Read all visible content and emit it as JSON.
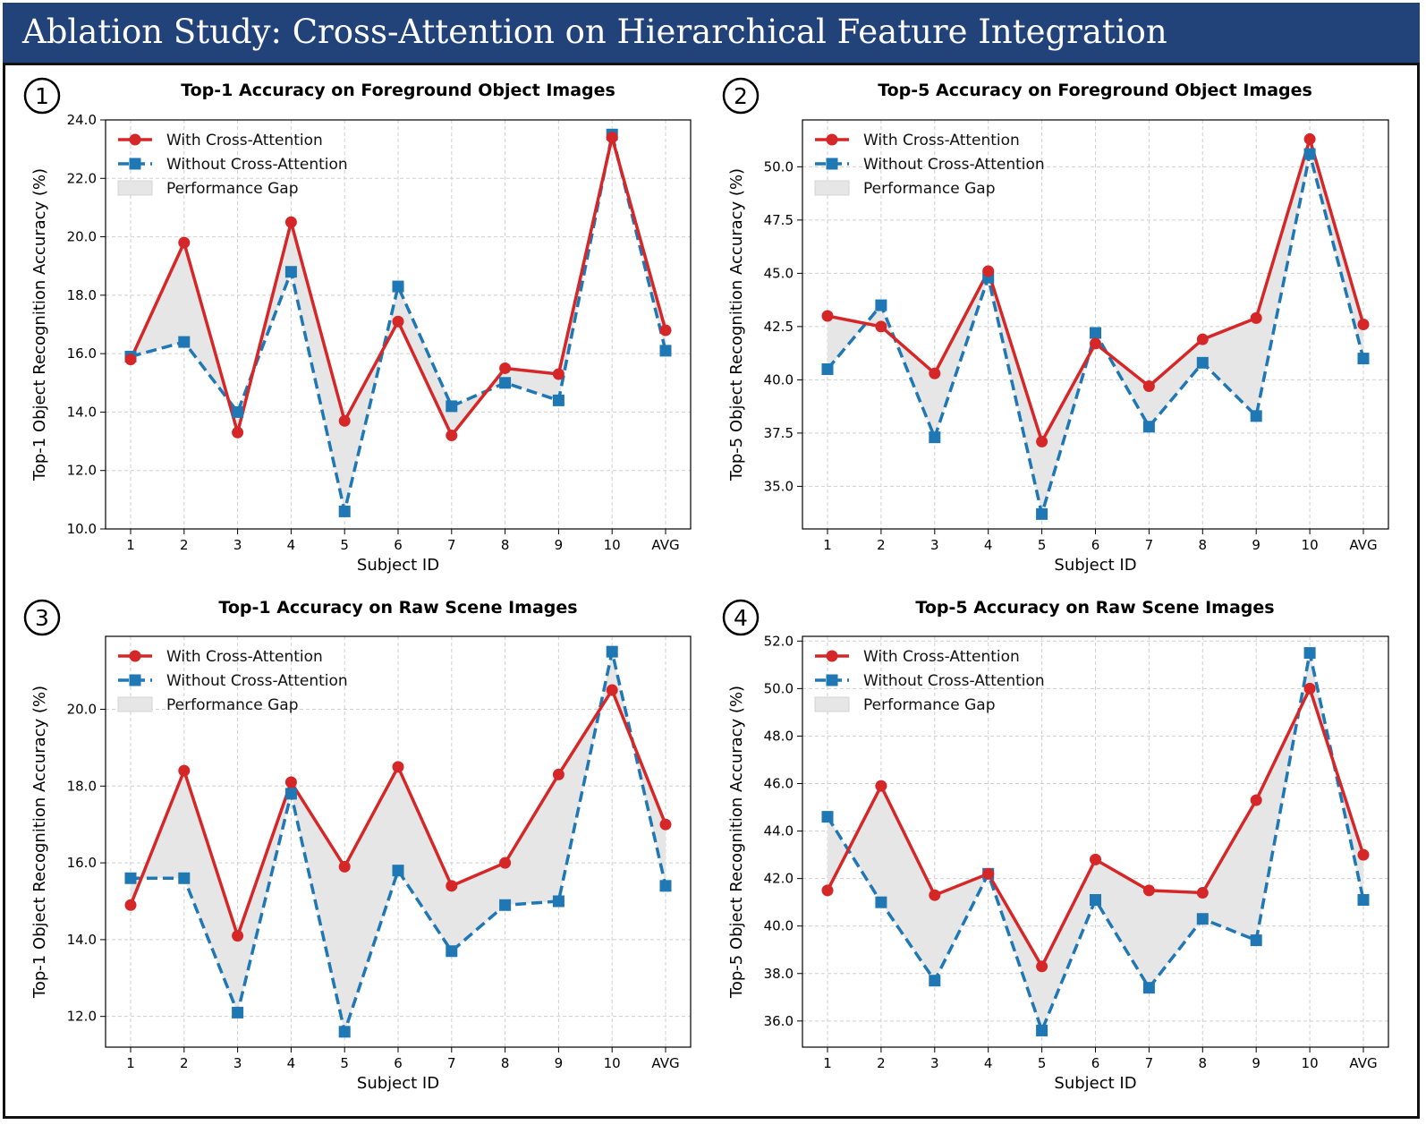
{
  "figure_title": "Ablation Study: Cross-Attention on Hierarchical Feature Integration",
  "colors": {
    "banner": "#22427a",
    "with": "#d62728",
    "without": "#1f77b4",
    "gap": "#e6e6e6"
  },
  "legend": {
    "with_label": "With Cross-Attention",
    "without_label": "Without Cross-Attention",
    "gap_label": "Performance Gap"
  },
  "chart_data": [
    {
      "type": "line",
      "badge": "1",
      "title": "Top-1 Accuracy on Foreground Object Images",
      "xlabel": "Subject ID",
      "ylabel": "Top-1 Object Recognition Accuracy (%)",
      "categories": [
        "1",
        "2",
        "3",
        "4",
        "5",
        "6",
        "7",
        "8",
        "9",
        "10",
        "AVG"
      ],
      "ylim": [
        10.0,
        24.0
      ],
      "yticks": [
        10.0,
        12.0,
        14.0,
        16.0,
        18.0,
        20.0,
        22.0,
        24.0
      ],
      "yticks_text": [
        "10.0",
        "12.0",
        "14.0",
        "16.0",
        "18.0",
        "20.0",
        "22.0",
        "24.0"
      ],
      "grid": true,
      "legend_position": "top-left",
      "series": [
        {
          "name": "With Cross-Attention",
          "values": [
            15.8,
            19.8,
            13.3,
            20.5,
            13.7,
            17.1,
            13.2,
            15.5,
            15.3,
            23.4,
            16.8
          ]
        },
        {
          "name": "Without Cross-Attention",
          "values": [
            15.9,
            16.4,
            14.0,
            18.8,
            10.6,
            18.3,
            14.2,
            15.0,
            14.4,
            23.5,
            16.1
          ]
        }
      ]
    },
    {
      "type": "line",
      "badge": "2",
      "title": "Top-5 Accuracy on Foreground Object Images",
      "xlabel": "Subject ID",
      "ylabel": "Top-5 Object Recognition Accuracy (%)",
      "categories": [
        "1",
        "2",
        "3",
        "4",
        "5",
        "6",
        "7",
        "8",
        "9",
        "10",
        "AVG"
      ],
      "ylim": [
        33.0,
        52.2
      ],
      "yticks": [
        35.0,
        37.5,
        40.0,
        42.5,
        45.0,
        47.5,
        50.0
      ],
      "yticks_text": [
        "35.0",
        "37.5",
        "40.0",
        "42.5",
        "45.0",
        "47.5",
        "50.0"
      ],
      "grid": true,
      "legend_position": "top-left",
      "series": [
        {
          "name": "With Cross-Attention",
          "values": [
            43.0,
            42.5,
            40.3,
            45.1,
            37.1,
            41.7,
            39.7,
            41.9,
            42.9,
            51.3,
            42.6
          ]
        },
        {
          "name": "Without Cross-Attention",
          "values": [
            40.5,
            43.5,
            37.3,
            44.8,
            33.7,
            42.2,
            37.8,
            40.8,
            38.3,
            50.6,
            41.0
          ]
        }
      ]
    },
    {
      "type": "line",
      "badge": "3",
      "title": "Top-1 Accuracy on Raw Scene Images",
      "xlabel": "Subject ID",
      "ylabel": "Top-1 Object Recognition Accuracy (%)",
      "categories": [
        "1",
        "2",
        "3",
        "4",
        "5",
        "6",
        "7",
        "8",
        "9",
        "10",
        "AVG"
      ],
      "ylim": [
        11.2,
        21.9
      ],
      "yticks": [
        12.0,
        14.0,
        16.0,
        18.0,
        20.0
      ],
      "yticks_text": [
        "12.0",
        "14.0",
        "16.0",
        "18.0",
        "20.0"
      ],
      "grid": true,
      "legend_position": "top-left",
      "series": [
        {
          "name": "With Cross-Attention",
          "values": [
            14.9,
            18.4,
            14.1,
            18.1,
            15.9,
            18.5,
            15.4,
            16.0,
            18.3,
            20.5,
            17.0
          ]
        },
        {
          "name": "Without Cross-Attention",
          "values": [
            15.6,
            15.6,
            12.1,
            17.8,
            11.6,
            15.8,
            13.7,
            14.9,
            15.0,
            21.5,
            15.4
          ]
        }
      ]
    },
    {
      "type": "line",
      "badge": "4",
      "title": "Top-5 Accuracy on Raw Scene Images",
      "xlabel": "Subject ID",
      "ylabel": "Top-5 Object Recognition Accuracy (%)",
      "categories": [
        "1",
        "2",
        "3",
        "4",
        "5",
        "6",
        "7",
        "8",
        "9",
        "10",
        "AVG"
      ],
      "ylim": [
        34.9,
        52.2
      ],
      "yticks": [
        36.0,
        38.0,
        40.0,
        42.0,
        44.0,
        46.0,
        48.0,
        50.0,
        52.0
      ],
      "yticks_text": [
        "36.0",
        "38.0",
        "40.0",
        "42.0",
        "44.0",
        "46.0",
        "48.0",
        "50.0",
        "52.0"
      ],
      "grid": true,
      "legend_position": "top-left",
      "series": [
        {
          "name": "With Cross-Attention",
          "values": [
            41.5,
            45.9,
            41.3,
            42.2,
            38.3,
            42.8,
            41.5,
            41.4,
            45.3,
            50.0,
            43.0
          ]
        },
        {
          "name": "Without Cross-Attention",
          "values": [
            44.6,
            41.0,
            37.7,
            42.2,
            35.6,
            41.1,
            37.4,
            40.3,
            39.4,
            51.5,
            41.1
          ]
        }
      ]
    }
  ]
}
